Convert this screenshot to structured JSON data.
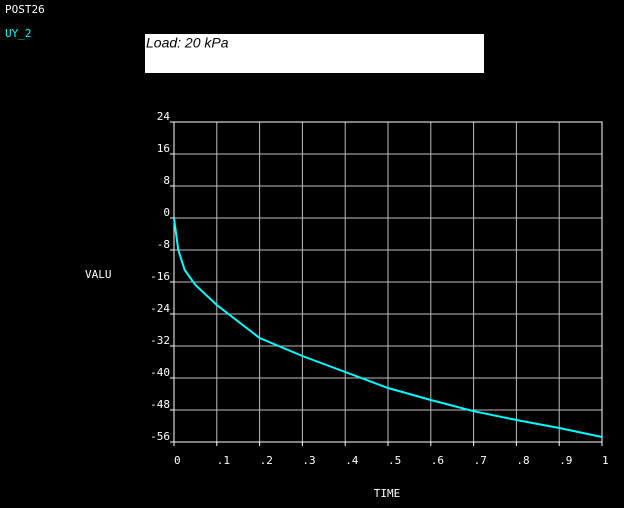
{
  "chart_data": {
    "type": "line",
    "program_label": "POST26",
    "annotation": "Load: 20 kPa",
    "xlabel": "TIME",
    "ylabel": "VALU",
    "x": [
      0,
      0.01,
      0.025,
      0.05,
      0.1,
      0.2,
      0.3,
      0.4,
      0.5,
      0.6,
      0.7,
      0.8,
      0.9,
      1
    ],
    "series": [
      {
        "name": "UY_2",
        "color": "#00ffff",
        "values": [
          0,
          -8,
          -13,
          -16.75,
          -21.75,
          -30,
          -34.5,
          -38.5,
          -42.5,
          -45.5,
          -48.3,
          -50.5,
          -52.5,
          -54.75
        ]
      }
    ],
    "xlim": [
      0,
      1
    ],
    "xticks": [
      0,
      {
        "value": 0.1,
        "label": ".1"
      },
      {
        "value": 0.2,
        "label": ".2"
      },
      {
        "value": 0.3,
        "label": ".3"
      },
      {
        "value": 0.4,
        "label": ".4"
      },
      {
        "value": 0.5,
        "label": ".5"
      },
      {
        "value": 0.6,
        "label": ".6"
      },
      {
        "value": 0.7,
        "label": ".7"
      },
      {
        "value": 0.8,
        "label": ".8"
      },
      {
        "value": 0.9,
        "label": ".9"
      },
      1
    ],
    "ylim": [
      -56,
      24
    ],
    "yticks": [
      24,
      16,
      8,
      0,
      -8,
      -16,
      -24,
      -32,
      -40,
      -48,
      -56
    ],
    "grid": true
  }
}
